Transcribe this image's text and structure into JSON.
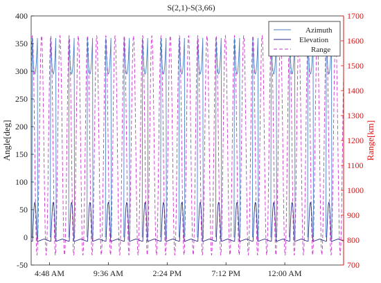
{
  "chart_data": {
    "type": "line",
    "title": "S(2,1)-S(3,66)",
    "xlabel": "",
    "ylabel": "Angle[deg]",
    "ylabel_right": "Range[km]",
    "x_tick_labels": [
      "4:48 AM",
      "9:36 AM",
      "2:24 PM",
      "7:12 PM",
      "12:00 AM"
    ],
    "x_tick_values_hours": [
      4.8,
      9.6,
      14.4,
      19.2,
      24.0
    ],
    "xlim_hours": [
      3.3,
      28.8
    ],
    "ylim": [
      -50,
      400
    ],
    "y_ticks": [
      -50,
      0,
      50,
      100,
      150,
      200,
      250,
      300,
      350,
      400
    ],
    "ylim_right": [
      700,
      1700
    ],
    "y_ticks_right": [
      700,
      800,
      900,
      1000,
      1100,
      1200,
      1300,
      1400,
      1500,
      1600,
      1700
    ],
    "grid": false,
    "legend_position": "top-right",
    "colors": {
      "azimuth": "#4a7fc6",
      "elevation": "#2a2a8a",
      "range": "#cc33cc",
      "right_axis": "#e01010",
      "left_axis": "#222222"
    },
    "series": [
      {
        "name": "Azimuth",
        "axis": "left",
        "pattern": "periodic",
        "period_hours": 1.5,
        "first_event_hours": 3.6,
        "dip_min_deg": 295,
        "peak_deg": 360,
        "low_deg": 0
      },
      {
        "name": "Elevation",
        "axis": "left",
        "pattern": "periodic",
        "period_hours": 1.5,
        "first_event_hours": 3.6,
        "peak_deg": 63,
        "baseline_deg": -3,
        "trough_deg": -7
      },
      {
        "name": "Range",
        "axis": "right",
        "pattern": "periodic",
        "period_hours": 0.75,
        "max_km": 1620,
        "min_km": 740
      }
    ]
  }
}
